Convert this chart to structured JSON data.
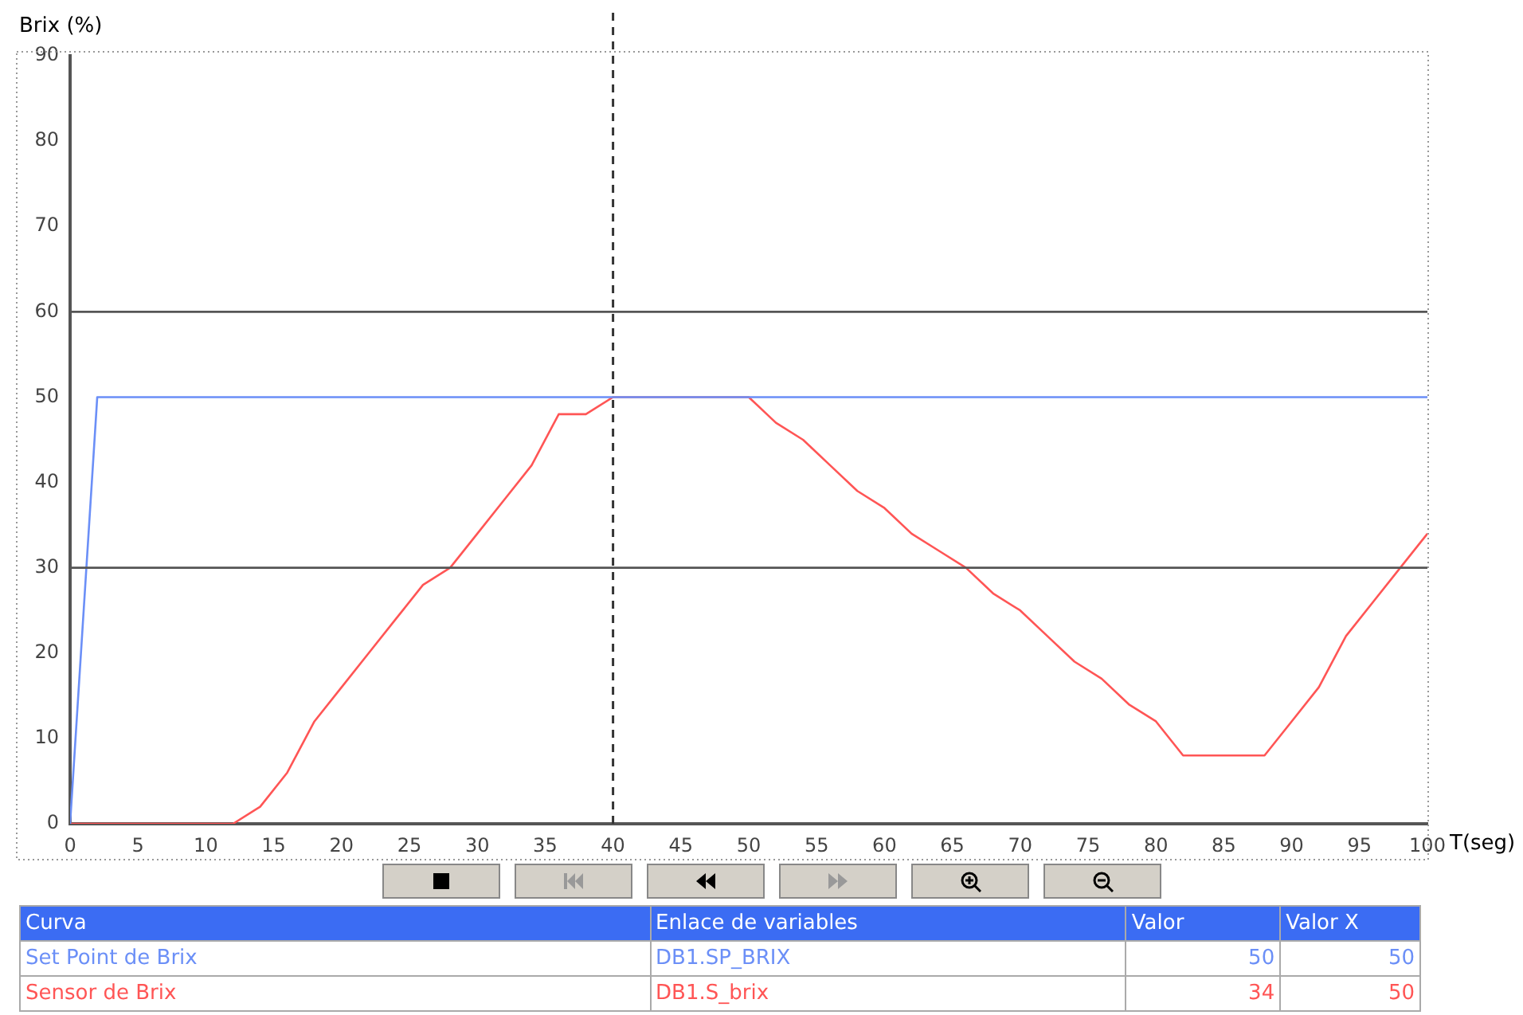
{
  "chart_data": {
    "type": "line",
    "xlabel": "T(seg)",
    "ylabel": "Brix (%)",
    "xlim": [
      0,
      100
    ],
    "xticks": [
      0,
      5,
      10,
      15,
      20,
      25,
      30,
      35,
      40,
      45,
      50,
      55,
      60,
      65,
      70,
      75,
      80,
      85,
      90,
      95,
      100
    ],
    "ylim": [
      0,
      90
    ],
    "yticks": [
      0,
      10,
      20,
      30,
      40,
      50,
      60,
      70,
      80,
      90
    ],
    "grid": false,
    "legend": false,
    "marker": "none",
    "line_style": "solid",
    "series": [
      {
        "name": "Set Point de Brix",
        "color": "#6b8ff7",
        "x": [
          0,
          2,
          100
        ],
        "values": [
          0,
          50,
          50
        ]
      },
      {
        "name": "Sensor de Brix",
        "color": "#ff5555",
        "x": [
          0,
          12,
          14,
          16,
          18,
          20,
          22,
          24,
          26,
          28,
          30,
          32,
          34,
          36,
          38,
          40,
          50,
          52,
          54,
          56,
          58,
          60,
          62,
          64,
          66,
          68,
          70,
          72,
          74,
          76,
          78,
          80,
          82,
          88,
          90,
          92,
          94,
          96,
          98,
          100
        ],
        "values": [
          0,
          0,
          2,
          6,
          12,
          16,
          20,
          24,
          28,
          30,
          34,
          38,
          42,
          48,
          48,
          50,
          50,
          47,
          45,
          42,
          39,
          37,
          34,
          32,
          30,
          27,
          25,
          22,
          19,
          17,
          14,
          12,
          8,
          8,
          12,
          16,
          22,
          26,
          30,
          34
        ]
      }
    ],
    "ref_lines": [
      {
        "axis": "y",
        "value": 30,
        "color": "#555555",
        "line_style": "solid"
      },
      {
        "axis": "y",
        "value": 60,
        "color": "#555555",
        "line_style": "solid"
      },
      {
        "axis": "x",
        "value": 40,
        "color": "#333333",
        "line_style": "dashed"
      }
    ],
    "annotations": [
      "Curva",
      "Enlace de variables",
      "Valor",
      "Valor X",
      "DB1.SP_BRIX",
      "50",
      "50",
      "DB1.S_brix",
      "34",
      "50"
    ]
  }
}
